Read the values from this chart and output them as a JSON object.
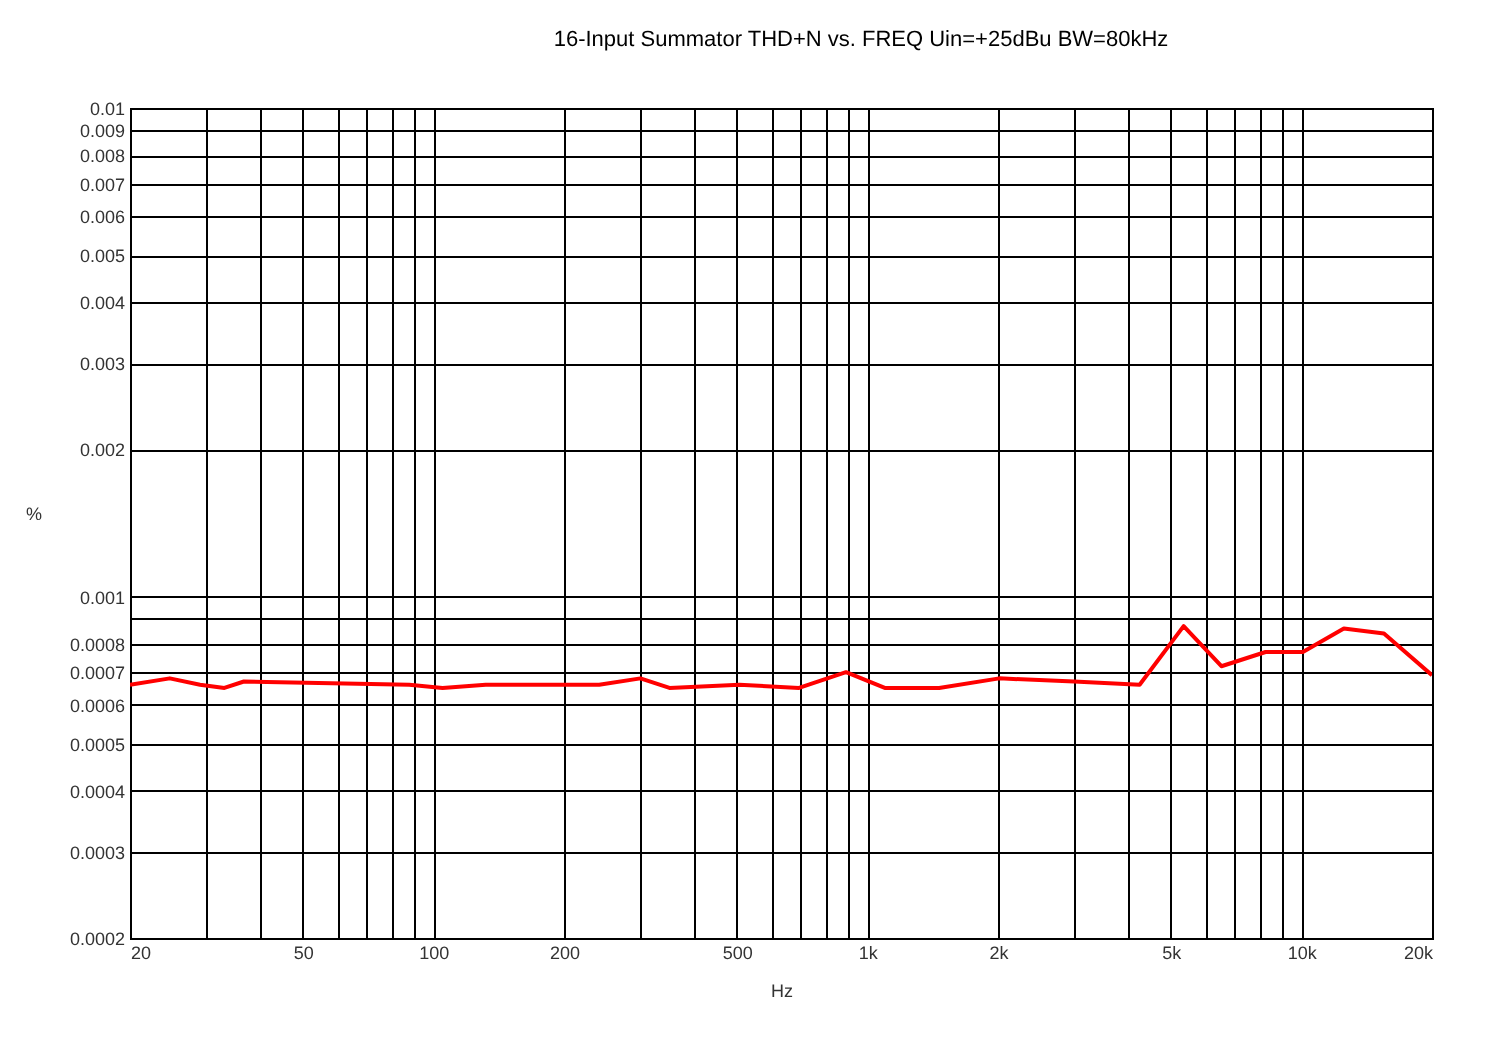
{
  "chart_data": {
    "type": "line",
    "title": "16-Input Summator THD+N vs. FREQ Uin=+25dBu  BW=80kHz",
    "xlabel": "Hz",
    "ylabel": "%",
    "log": "xy",
    "grid": true,
    "marker": "none",
    "line_style": "solid",
    "xlim": [
      20,
      20000
    ],
    "xticks": [
      20,
      {
        "value": 30,
        "label": null
      },
      {
        "value": 40,
        "label": null
      },
      50,
      {
        "value": 60,
        "label": null
      },
      {
        "value": 70,
        "label": null
      },
      {
        "value": 80,
        "label": null
      },
      {
        "value": 90,
        "label": null
      },
      100,
      200,
      {
        "value": 300,
        "label": null
      },
      {
        "value": 400,
        "label": null
      },
      500,
      {
        "value": 600,
        "label": null
      },
      {
        "value": 700,
        "label": null
      },
      {
        "value": 800,
        "label": null
      },
      {
        "value": 900,
        "label": null
      },
      {
        "value": 1000,
        "label": "1k"
      },
      {
        "value": 2000,
        "label": "2k"
      },
      {
        "value": 3000,
        "label": null
      },
      {
        "value": 4000,
        "label": null
      },
      {
        "value": 5000,
        "label": "5k"
      },
      {
        "value": 6000,
        "label": null
      },
      {
        "value": 7000,
        "label": null
      },
      {
        "value": 8000,
        "label": null
      },
      {
        "value": 9000,
        "label": null
      },
      {
        "value": 10000,
        "label": "10k"
      },
      {
        "value": 20000,
        "label": "20k"
      }
    ],
    "ylim": [
      0.0002,
      0.01
    ],
    "yticks": [
      0.0002,
      0.0003,
      0.0004,
      0.0005,
      0.0006,
      0.0007,
      0.0008,
      {
        "value": 0.0009,
        "label": null
      },
      0.001,
      0.002,
      0.003,
      0.004,
      0.005,
      0.006,
      0.007,
      0.008,
      0.009,
      0.01
    ],
    "series": [
      {
        "color": "#ff0000",
        "x": [
          20,
          24.7,
          29,
          33,
          36.6,
          88,
          105,
          132,
          241,
          300,
          350,
          507,
          696,
          893,
          1097,
          1463,
          2013,
          2993,
          4240,
          5355,
          6543,
          8270,
          10080,
          12530,
          15500,
          20000
        ],
        "values": [
          0.00066,
          0.00068,
          0.00066,
          0.00065,
          0.00067,
          0.00066,
          0.00065,
          0.00066,
          0.00066,
          0.00068,
          0.00065,
          0.00066,
          0.00065,
          0.0007,
          0.00065,
          0.00065,
          0.00068,
          0.00067,
          0.00066,
          0.00087,
          0.00072,
          0.00077,
          0.00077,
          0.00086,
          0.00084,
          0.00069
        ]
      }
    ]
  }
}
